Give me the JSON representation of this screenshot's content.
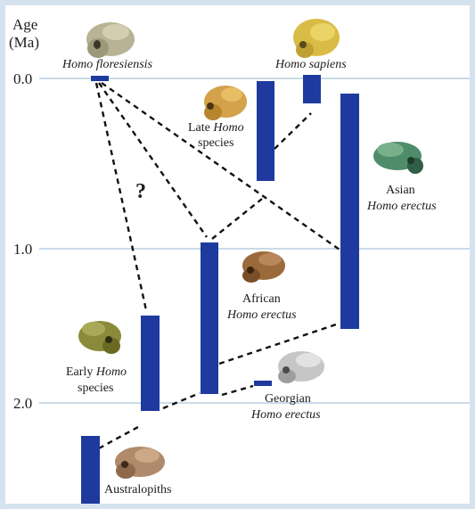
{
  "axis": {
    "title_line1": "Age",
    "title_line2": "(Ma)",
    "ticks": [
      "0.0",
      "1.0",
      "2.0"
    ]
  },
  "colors": {
    "bar": "#1f3a9e",
    "gridline": "#b9cde0",
    "dash": "#111111",
    "background": "#d6e3ef"
  },
  "species": {
    "floresiensis": "Homo floresiensis",
    "sapiens": "Homo sapiens",
    "late_homo_line1": "Late",
    "late_homo_italic": "Homo",
    "late_homo_line2": "species",
    "asian_line1": "Asian",
    "asian_line2": "Homo erectus",
    "african_line1": "African",
    "african_line2": "Homo erectus",
    "early_homo_line1": "Early",
    "early_homo_italic": "Homo",
    "early_homo_line2": "species",
    "georgian_line1": "Georgian",
    "georgian_line2": "Homo erectus",
    "australopiths": "Australopiths"
  },
  "question_mark": "?",
  "icons": [
    "skull-floresiensis-icon",
    "skull-sapiens-icon",
    "skull-late-homo-icon",
    "skull-asian-erectus-icon",
    "skull-african-erectus-icon",
    "skull-early-homo-icon",
    "skull-georgian-icon",
    "skull-australopith-icon"
  ]
}
